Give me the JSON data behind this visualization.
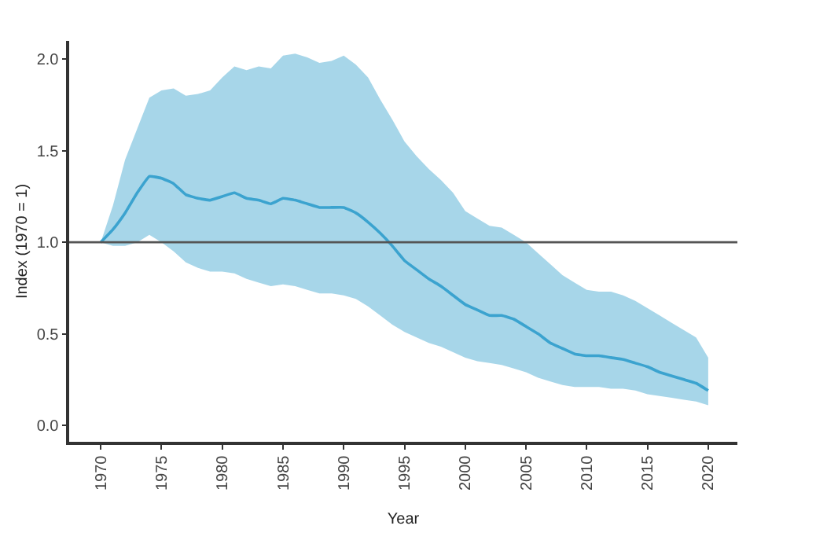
{
  "chart_data": {
    "type": "line",
    "xlabel": "Year",
    "ylabel": "Index (1970 = 1)",
    "x": [
      1970,
      1971,
      1972,
      1973,
      1974,
      1975,
      1976,
      1977,
      1978,
      1979,
      1980,
      1981,
      1982,
      1983,
      1984,
      1985,
      1986,
      1987,
      1988,
      1989,
      1990,
      1991,
      1992,
      1993,
      1994,
      1995,
      1996,
      1997,
      1998,
      1999,
      2000,
      2001,
      2002,
      2003,
      2004,
      2005,
      2006,
      2007,
      2008,
      2009,
      2010,
      2011,
      2012,
      2013,
      2014,
      2015,
      2016,
      2017,
      2018,
      2019,
      2020
    ],
    "series": [
      {
        "color": "#3ba3cf",
        "values": [
          1.0,
          1.07,
          1.16,
          1.27,
          1.36,
          1.35,
          1.32,
          1.26,
          1.24,
          1.23,
          1.25,
          1.27,
          1.24,
          1.23,
          1.21,
          1.24,
          1.23,
          1.21,
          1.19,
          1.19,
          1.19,
          1.16,
          1.11,
          1.05,
          0.98,
          0.9,
          0.85,
          0.8,
          0.76,
          0.71,
          0.66,
          0.63,
          0.6,
          0.6,
          0.58,
          0.54,
          0.5,
          0.45,
          0.42,
          0.39,
          0.38,
          0.38,
          0.37,
          0.36,
          0.34,
          0.32,
          0.29,
          0.27,
          0.25,
          0.23,
          0.19
        ],
        "upper": [
          1.0,
          1.2,
          1.45,
          1.62,
          1.79,
          1.83,
          1.84,
          1.8,
          1.81,
          1.83,
          1.9,
          1.96,
          1.94,
          1.96,
          1.95,
          2.02,
          2.03,
          2.01,
          1.98,
          1.99,
          2.02,
          1.97,
          1.9,
          1.78,
          1.67,
          1.55,
          1.47,
          1.4,
          1.34,
          1.27,
          1.17,
          1.13,
          1.09,
          1.08,
          1.04,
          1.0,
          0.94,
          0.88,
          0.82,
          0.78,
          0.74,
          0.73,
          0.73,
          0.71,
          0.68,
          0.64,
          0.6,
          0.56,
          0.52,
          0.48,
          0.37
        ],
        "lower": [
          1.0,
          0.98,
          0.98,
          1.0,
          1.04,
          1.0,
          0.95,
          0.89,
          0.86,
          0.84,
          0.84,
          0.83,
          0.8,
          0.78,
          0.76,
          0.77,
          0.76,
          0.74,
          0.72,
          0.72,
          0.71,
          0.69,
          0.65,
          0.6,
          0.55,
          0.51,
          0.48,
          0.45,
          0.43,
          0.4,
          0.37,
          0.35,
          0.34,
          0.33,
          0.31,
          0.29,
          0.26,
          0.24,
          0.22,
          0.21,
          0.21,
          0.21,
          0.2,
          0.2,
          0.19,
          0.17,
          0.16,
          0.15,
          0.14,
          0.13,
          0.11
        ]
      }
    ],
    "xlim": [
      1967.4,
      2022.4
    ],
    "xticks": [
      1970,
      1975,
      1980,
      1985,
      1990,
      1995,
      2000,
      2005,
      2010,
      2015,
      2020
    ],
    "ylim": [
      -0.09,
      2.1
    ],
    "yticks": [
      {
        "value": 0,
        "label": "0.0"
      },
      {
        "value": 0.5,
        "label": "0.5"
      },
      {
        "value": 1,
        "label": "1.0"
      },
      {
        "value": 1.5,
        "label": "1.5"
      },
      {
        "value": 2,
        "label": "2.0"
      }
    ],
    "ref_lines": [
      {
        "axis": "y",
        "value": 1,
        "color": "#555555"
      }
    ]
  }
}
